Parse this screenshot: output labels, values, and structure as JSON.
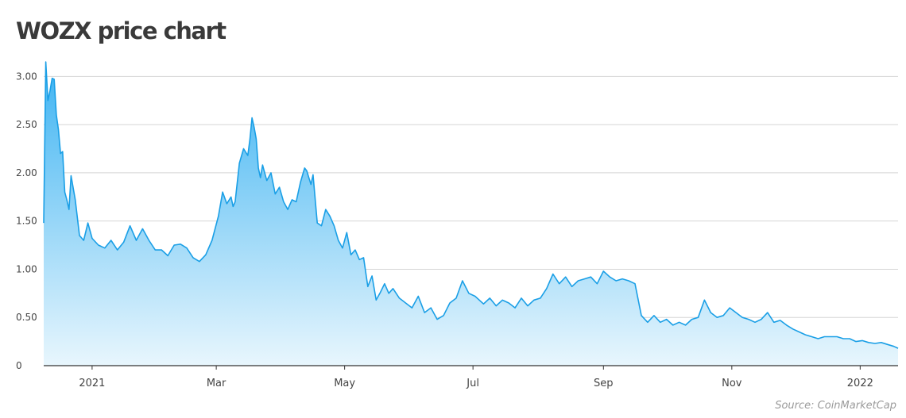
{
  "title": "WOZX price chart",
  "source": "Source: CoinMarketCap",
  "colors": {
    "line": "#1a9fe6",
    "fill_top": "#3db3f2",
    "fill_bottom": "#e8f6fd",
    "grid": "#d5d5d5",
    "axis": "#333333",
    "text": "#444444"
  },
  "chart_data": {
    "type": "area",
    "title": "WOZX price chart",
    "xlabel": "",
    "ylabel": "",
    "ylim": [
      0,
      3.2
    ],
    "yticks": [
      0,
      0.5,
      1.0,
      1.5,
      2.0,
      2.5,
      3.0
    ],
    "ytick_labels": [
      "0",
      "0.50",
      "1.00",
      "1.50",
      "2.00",
      "2.50",
      "3.00"
    ],
    "xlim": [
      "2020-12-09",
      "2022-01-19"
    ],
    "xticks": [
      {
        "label": "2021",
        "date": "2021-01-01"
      },
      {
        "label": "Mar",
        "date": "2021-03-01"
      },
      {
        "label": "May",
        "date": "2021-05-01"
      },
      {
        "label": "Jul",
        "date": "2021-07-01"
      },
      {
        "label": "Sep",
        "date": "2021-09-01"
      },
      {
        "label": "Nov",
        "date": "2021-11-01"
      },
      {
        "label": "2022",
        "date": "2022-01-01"
      }
    ],
    "grid": true,
    "legend": "none",
    "series": [
      {
        "x": [
          "2020-12-09",
          "2020-12-10",
          "2020-12-11",
          "2020-12-12",
          "2020-12-13",
          "2020-12-14",
          "2020-12-15",
          "2020-12-16",
          "2020-12-17",
          "2020-12-18",
          "2020-12-19",
          "2020-12-20",
          "2020-12-21",
          "2020-12-22",
          "2020-12-24",
          "2020-12-26",
          "2020-12-28",
          "2020-12-30",
          "2021-01-01",
          "2021-01-04",
          "2021-01-07",
          "2021-01-10",
          "2021-01-13",
          "2021-01-16",
          "2021-01-19",
          "2021-01-22",
          "2021-01-25",
          "2021-01-28",
          "2021-01-31",
          "2021-02-03",
          "2021-02-06",
          "2021-02-09",
          "2021-02-12",
          "2021-02-15",
          "2021-02-18",
          "2021-02-21",
          "2021-02-24",
          "2021-02-27",
          "2021-03-02",
          "2021-03-04",
          "2021-03-06",
          "2021-03-08",
          "2021-03-09",
          "2021-03-10",
          "2021-03-12",
          "2021-03-14",
          "2021-03-16",
          "2021-03-17",
          "2021-03-18",
          "2021-03-19",
          "2021-03-20",
          "2021-03-21",
          "2021-03-22",
          "2021-03-23",
          "2021-03-25",
          "2021-03-27",
          "2021-03-29",
          "2021-03-31",
          "2021-04-02",
          "2021-04-04",
          "2021-04-06",
          "2021-04-08",
          "2021-04-10",
          "2021-04-12",
          "2021-04-13",
          "2021-04-14",
          "2021-04-15",
          "2021-04-16",
          "2021-04-18",
          "2021-04-20",
          "2021-04-22",
          "2021-04-24",
          "2021-04-26",
          "2021-04-28",
          "2021-04-30",
          "2021-05-02",
          "2021-05-04",
          "2021-05-06",
          "2021-05-08",
          "2021-05-10",
          "2021-05-12",
          "2021-05-14",
          "2021-05-16",
          "2021-05-18",
          "2021-05-20",
          "2021-05-22",
          "2021-05-24",
          "2021-05-27",
          "2021-05-30",
          "2021-06-02",
          "2021-06-05",
          "2021-06-08",
          "2021-06-11",
          "2021-06-14",
          "2021-06-17",
          "2021-06-20",
          "2021-06-23",
          "2021-06-26",
          "2021-06-29",
          "2021-07-02",
          "2021-07-04",
          "2021-07-06",
          "2021-07-09",
          "2021-07-12",
          "2021-07-15",
          "2021-07-18",
          "2021-07-21",
          "2021-07-24",
          "2021-07-27",
          "2021-07-30",
          "2021-08-02",
          "2021-08-05",
          "2021-08-08",
          "2021-08-11",
          "2021-08-14",
          "2021-08-17",
          "2021-08-20",
          "2021-08-23",
          "2021-08-26",
          "2021-08-29",
          "2021-09-01",
          "2021-09-04",
          "2021-09-07",
          "2021-09-10",
          "2021-09-13",
          "2021-09-16",
          "2021-09-19",
          "2021-09-22",
          "2021-09-25",
          "2021-09-28",
          "2021-10-01",
          "2021-10-04",
          "2021-10-07",
          "2021-10-10",
          "2021-10-13",
          "2021-10-16",
          "2021-10-19",
          "2021-10-22",
          "2021-10-25",
          "2021-10-28",
          "2021-10-31",
          "2021-11-03",
          "2021-11-06",
          "2021-11-09",
          "2021-11-12",
          "2021-11-15",
          "2021-11-18",
          "2021-11-21",
          "2021-11-24",
          "2021-11-27",
          "2021-11-30",
          "2021-12-03",
          "2021-12-06",
          "2021-12-09",
          "2021-12-12",
          "2021-12-15",
          "2021-12-18",
          "2021-12-21",
          "2021-12-24",
          "2021-12-27",
          "2021-12-30",
          "2022-01-02",
          "2022-01-05",
          "2022-01-08",
          "2022-01-11",
          "2022-01-14",
          "2022-01-17",
          "2022-01-19"
        ],
        "y": [
          1.48,
          3.15,
          2.75,
          2.85,
          2.98,
          2.97,
          2.6,
          2.45,
          2.2,
          2.22,
          1.8,
          1.72,
          1.62,
          1.97,
          1.72,
          1.35,
          1.3,
          1.48,
          1.32,
          1.25,
          1.22,
          1.3,
          1.2,
          1.28,
          1.45,
          1.3,
          1.42,
          1.3,
          1.2,
          1.2,
          1.14,
          1.25,
          1.26,
          1.22,
          1.12,
          1.08,
          1.15,
          1.3,
          1.55,
          1.8,
          1.68,
          1.75,
          1.65,
          1.7,
          2.1,
          2.25,
          2.18,
          2.35,
          2.57,
          2.47,
          2.35,
          2.05,
          1.95,
          2.08,
          1.92,
          2.0,
          1.78,
          1.85,
          1.7,
          1.62,
          1.72,
          1.7,
          1.9,
          2.05,
          2.02,
          1.95,
          1.88,
          1.98,
          1.48,
          1.45,
          1.62,
          1.55,
          1.45,
          1.3,
          1.22,
          1.38,
          1.15,
          1.2,
          1.1,
          1.12,
          0.82,
          0.93,
          0.68,
          0.76,
          0.85,
          0.75,
          0.8,
          0.7,
          0.65,
          0.6,
          0.72,
          0.55,
          0.6,
          0.48,
          0.52,
          0.65,
          0.7,
          0.88,
          0.75,
          0.72,
          0.68,
          0.64,
          0.7,
          0.62,
          0.68,
          0.65,
          0.6,
          0.7,
          0.62,
          0.68,
          0.7,
          0.8,
          0.95,
          0.85,
          0.92,
          0.82,
          0.88,
          0.9,
          0.92,
          0.85,
          0.98,
          0.92,
          0.88,
          0.9,
          0.88,
          0.85,
          0.52,
          0.45,
          0.52,
          0.45,
          0.48,
          0.42,
          0.45,
          0.42,
          0.48,
          0.5,
          0.68,
          0.55,
          0.5,
          0.52,
          0.6,
          0.55,
          0.5,
          0.48,
          0.45,
          0.48,
          0.55,
          0.45,
          0.47,
          0.42,
          0.38,
          0.35,
          0.32,
          0.3,
          0.28,
          0.3,
          0.3,
          0.3,
          0.28,
          0.28,
          0.25,
          0.26,
          0.24,
          0.23,
          0.24,
          0.22,
          0.2,
          0.18
        ]
      }
    ]
  }
}
